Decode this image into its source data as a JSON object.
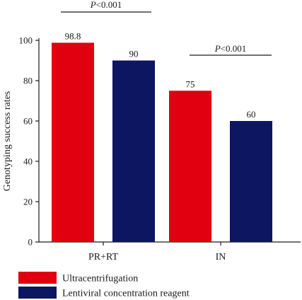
{
  "chart_data": {
    "type": "bar",
    "categories": [
      "PR+RT",
      "IN"
    ],
    "series": [
      {
        "name": "Ultracentrifugation",
        "values": [
          98.8,
          75
        ],
        "color": "#e0000f"
      },
      {
        "name": "Lentiviral concentration reagent",
        "values": [
          90,
          60
        ],
        "color": "#0d1660"
      }
    ],
    "data_labels": [
      [
        "98.8",
        "75"
      ],
      [
        "90",
        "60"
      ]
    ],
    "ylabel": "Genotyping success rates",
    "xlabel": "",
    "ylim": [
      0,
      100
    ],
    "yticks": [
      0,
      20,
      40,
      60,
      80,
      100
    ],
    "grid": false,
    "legend_position": "bottom-left",
    "annotations": [
      {
        "italic": "P",
        "rest": "<0.001",
        "category": "PR+RT"
      },
      {
        "italic": "P",
        "rest": "<0.001",
        "category": "IN"
      }
    ]
  }
}
